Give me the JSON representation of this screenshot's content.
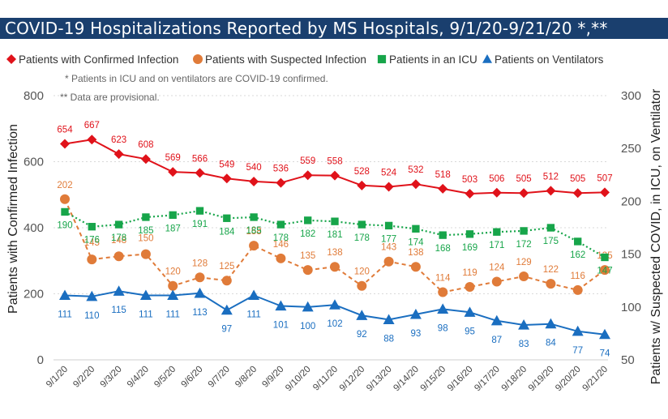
{
  "title": "COVID-19 Hospitalizations Reported by MS Hospitals, 9/1/20-9/21/20 *,**",
  "colors": {
    "title_band": "#1a3f6e",
    "confirmed": "#e0121a",
    "suspected": "#e07b39",
    "icu": "#17a54a",
    "ventilators": "#1a6ec0",
    "gridline": "#d9d9d9"
  },
  "notes": [
    "* Patients in ICU and on ventilators are COVID-19 confirmed.",
    "** Data are provisional."
  ],
  "chart_data": {
    "type": "line",
    "title": "COVID-19 Hospitalizations Reported by MS Hospitals, 9/1/20-9/21/20 *,**",
    "ylabel": "Patients with Confirmed Infection",
    "y2label": "Patients w/ Suspected COVID, in ICU, on Ventilator",
    "ylim": [
      0,
      800
    ],
    "y2lim": [
      50,
      300
    ],
    "yticks": [
      0,
      200,
      400,
      600,
      800
    ],
    "y2ticks": [
      50,
      100,
      150,
      200,
      250,
      300
    ],
    "grid": true,
    "legend_position": "top",
    "categories": [
      "9/1/20",
      "9/2/20",
      "9/3/20",
      "9/4/20",
      "9/5/20",
      "9/6/20",
      "9/7/20",
      "9/8/20",
      "9/9/20",
      "9/10/20",
      "9/11/20",
      "9/12/20",
      "9/13/20",
      "9/14/20",
      "9/15/20",
      "9/16/20",
      "9/17/20",
      "9/18/20",
      "9/19/20",
      "9/20/20",
      "9/21/20"
    ],
    "series": [
      {
        "name": "Patients with Confirmed Infection",
        "axis": "left",
        "marker": "diamond",
        "style": "solid",
        "color": "#e0121a",
        "values": [
          654,
          667,
          623,
          608,
          569,
          566,
          549,
          540,
          536,
          559,
          558,
          528,
          524,
          532,
          518,
          503,
          506,
          505,
          512,
          505,
          507
        ]
      },
      {
        "name": "Patients with Suspected Infection",
        "axis": "right",
        "marker": "circle",
        "style": "dashed",
        "color": "#e07b39",
        "values": [
          202,
          145,
          148,
          150,
          120,
          128,
          125,
          158,
          146,
          135,
          138,
          120,
          143,
          138,
          114,
          119,
          124,
          129,
          122,
          116,
          135
        ]
      },
      {
        "name": "Patients in an ICU",
        "axis": "right",
        "marker": "square",
        "style": "dotted",
        "color": "#17a54a",
        "values": [
          190,
          176,
          178,
          185,
          187,
          191,
          184,
          185,
          178,
          182,
          181,
          178,
          177,
          174,
          168,
          169,
          171,
          172,
          175,
          162,
          147
        ]
      },
      {
        "name": "Patients on Ventilators",
        "axis": "right",
        "marker": "triangle",
        "style": "solid",
        "color": "#1a6ec0",
        "values": [
          111,
          110,
          115,
          111,
          111,
          113,
          97,
          111,
          101,
          100,
          102,
          92,
          88,
          93,
          98,
          95,
          87,
          83,
          84,
          77,
          74
        ]
      }
    ]
  }
}
